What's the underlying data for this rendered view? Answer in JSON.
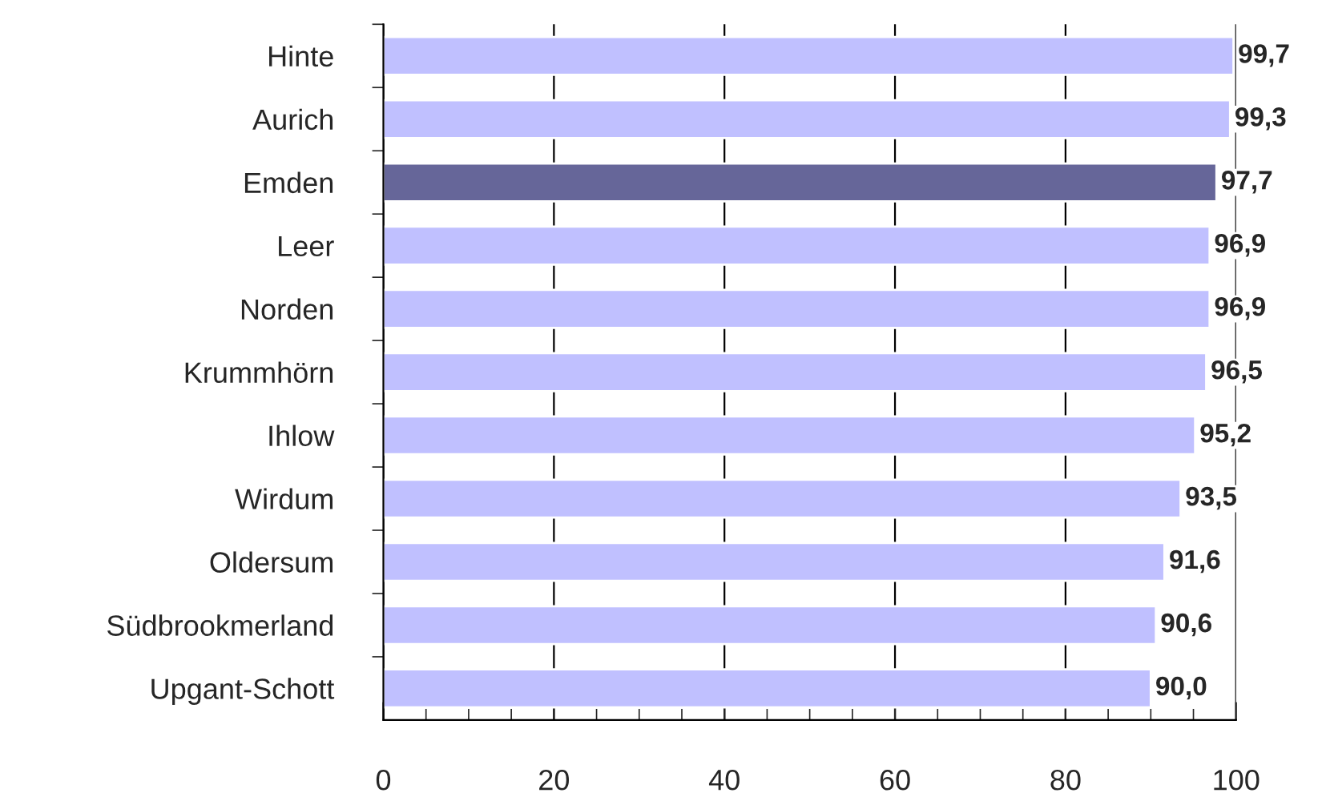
{
  "chart_data": {
    "type": "bar",
    "orientation": "horizontal",
    "categories": [
      "Hinte",
      "Aurich",
      "Emden",
      "Leer",
      "Norden",
      "Krummhörn",
      "Ihlow",
      "Wirdum",
      "Oldersum",
      "Südbrookmerland",
      "Upgant-Schott"
    ],
    "values": [
      99.7,
      99.3,
      97.7,
      96.9,
      96.9,
      96.5,
      95.2,
      93.5,
      91.6,
      90.6,
      90.0
    ],
    "value_labels": [
      "99,7",
      "99,3",
      "97,7",
      "96,9",
      "96,9",
      "96,5",
      "95,2",
      "93,5",
      "91,6",
      "90,6",
      "90,0"
    ],
    "colors": [
      "#c0c0ff",
      "#c0c0ff",
      "#666699",
      "#c0c0ff",
      "#c0c0ff",
      "#c0c0ff",
      "#c0c0ff",
      "#c0c0ff",
      "#c0c0ff",
      "#c0c0ff",
      "#c0c0ff"
    ],
    "xlim": [
      0,
      100
    ],
    "xticks": [
      0,
      20,
      40,
      60,
      80,
      100
    ],
    "grid": "x",
    "legend": false
  }
}
